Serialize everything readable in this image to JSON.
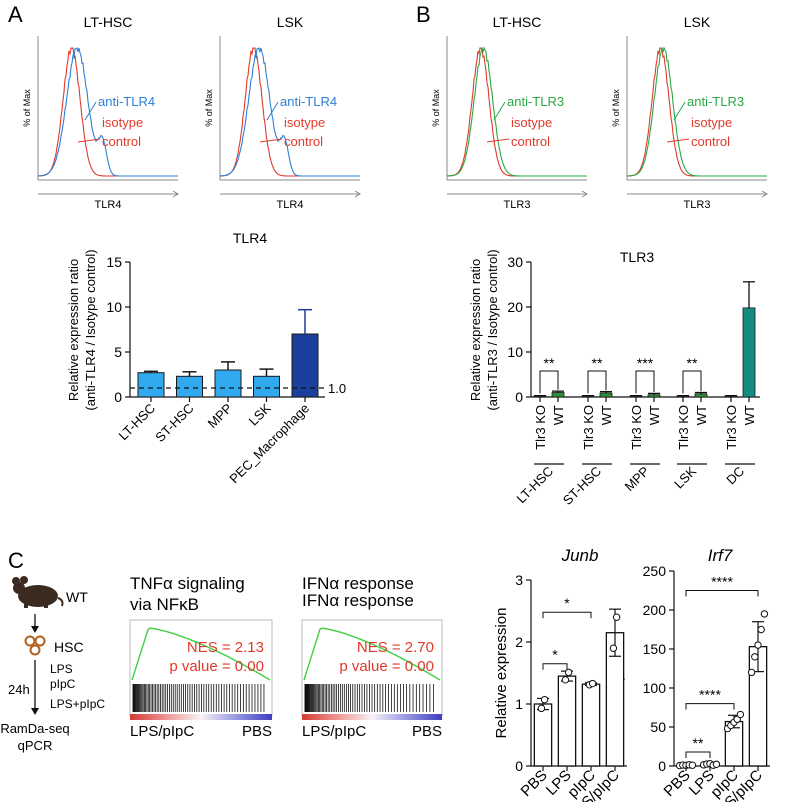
{
  "panel_letters": {
    "a": "A",
    "b": "B",
    "c": "C"
  },
  "histograms": [
    {
      "title": "LT-HSC",
      "ylabel": "% of Max",
      "xlabel": "TLR4",
      "label_primary": "anti-TLR4",
      "label_iso_1": "isotype",
      "label_iso_2": "control",
      "primary_color": "#2e7fd6",
      "iso_color": "#e03a2a"
    },
    {
      "title": "LSK",
      "ylabel": "% of Max",
      "xlabel": "TLR4",
      "label_primary": "anti-TLR4",
      "label_iso_1": "isotype",
      "label_iso_2": "control",
      "primary_color": "#2e7fd6",
      "iso_color": "#e03a2a"
    },
    {
      "title": "LT-HSC",
      "ylabel": "% of Max",
      "xlabel": "TLR3",
      "label_primary": "anti-TLR3",
      "label_iso_1": "isotype",
      "label_iso_2": "control",
      "primary_color": "#2aa845",
      "iso_color": "#e03a2a"
    },
    {
      "title": "LSK",
      "ylabel": "% of Max",
      "xlabel": "TLR3",
      "label_primary": "anti-TLR3",
      "label_iso_1": "isotype",
      "label_iso_2": "control",
      "primary_color": "#2aa845",
      "iso_color": "#e03a2a"
    }
  ],
  "chart_data": [
    {
      "id": "tlr4-bar",
      "type": "bar",
      "title": "TLR4",
      "ylabel_1": "Relative expression ratio",
      "ylabel_2": "(anti-TLR4 / Isotype control)",
      "categories": [
        "LT-HSC",
        "ST-HSC",
        "MPP",
        "LSK",
        "PEC_Macrophage"
      ],
      "values": [
        2.7,
        2.3,
        3.0,
        2.3,
        7.0
      ],
      "errors": [
        0.15,
        0.5,
        0.9,
        0.8,
        2.7
      ],
      "colors": [
        "#31a9ee",
        "#31a9ee",
        "#31a9ee",
        "#31a9ee",
        "#1b3f9c"
      ],
      "ylim": [
        0,
        15
      ],
      "yticks": [
        0,
        5,
        10,
        15
      ],
      "reference_line": {
        "value": 1.0,
        "label": "1.0"
      }
    },
    {
      "id": "tlr3-bar",
      "type": "bar",
      "title": "TLR3",
      "ylabel_1": "Relative expression ratio",
      "ylabel_2": "(anti-TLR3 / Isotype control)",
      "ylim": [
        0,
        30
      ],
      "yticks": [
        0,
        10,
        20,
        30
      ],
      "bar_labels": [
        "Tlr3 KO",
        "WT",
        "Tlr3 KO",
        "WT",
        "Tlr3 KO",
        "WT",
        "Tlr3 KO",
        "WT",
        "Tlr3 KO",
        "WT"
      ],
      "values": [
        0.2,
        1.0,
        0.2,
        0.9,
        0.2,
        0.5,
        0.2,
        0.7,
        0.2,
        19.8
      ],
      "errors": [
        0.1,
        0.3,
        0.1,
        0.3,
        0.1,
        0.3,
        0.1,
        0.3,
        0.1,
        5.8
      ],
      "colors": [
        "#2a8f38",
        "#2a8f38",
        "#2a8f38",
        "#2a8f38",
        "#2a8f38",
        "#2a8f38",
        "#2a8f38",
        "#2a8f38",
        "#2a8f38",
        "#168c80"
      ],
      "groups": [
        "LT-HSC",
        "ST-HSC",
        "MPP",
        "LSK",
        "DC"
      ],
      "significance": [
        "**",
        "**",
        "***",
        "**"
      ]
    },
    {
      "id": "junb-bar",
      "type": "bar",
      "title": "Junb",
      "ylabel": "Relative expression",
      "categories": [
        "PBS",
        "LPS",
        "pIpC",
        "LPS/pIpC"
      ],
      "values": [
        1.0,
        1.45,
        1.32,
        2.15
      ],
      "errors": [
        0.09,
        0.08,
        0.02,
        0.38
      ],
      "points": [
        [
          0.93,
          1.07
        ],
        [
          1.39,
          1.51
        ],
        [
          1.31,
          1.33
        ],
        [
          1.9,
          2.4
        ]
      ],
      "ylim": [
        0,
        3
      ],
      "yticks": [
        0,
        1,
        2,
        3
      ],
      "significance": [
        {
          "from": 0,
          "to": 1,
          "label": "*"
        },
        {
          "from": 0,
          "to": 2,
          "label": "*"
        }
      ]
    },
    {
      "id": "irf7-bar",
      "type": "bar",
      "title": "Irf7",
      "categories": [
        "PBS",
        "LPS",
        "pIpC",
        "LPS/pIpC"
      ],
      "values": [
        1,
        2,
        57,
        153
      ],
      "errors": [
        1,
        2,
        8,
        32
      ],
      "points": [
        [
          0.5,
          1.2,
          0.8,
          1.5,
          1.0
        ],
        [
          1.5,
          2.5,
          3.0,
          1.0,
          2.2
        ],
        [
          48,
          52,
          56,
          60,
          66
        ],
        [
          120,
          140,
          155,
          175,
          195
        ]
      ],
      "ylim": [
        0,
        250
      ],
      "yticks": [
        0,
        50,
        100,
        150,
        200,
        250
      ],
      "significance": [
        {
          "from": 0,
          "to": 1,
          "label": "**"
        },
        {
          "from": 0,
          "to": 2,
          "label": "****"
        },
        {
          "from": 0,
          "to": 3,
          "label": "****"
        }
      ]
    }
  ],
  "schematic": {
    "mouse_label": "WT",
    "cell_label": "HSC",
    "time_label": "24h",
    "treatments": [
      "LPS",
      "pIpC",
      "LPS+pIpC"
    ],
    "readouts": [
      "RamDa-seq",
      "qPCR"
    ]
  },
  "gsea": [
    {
      "title_1": "TNFα signaling",
      "title_2": "via NFκB",
      "nes": "NES = 2.13",
      "pvalue": "p value = 0.00",
      "left_label": "LPS/pIpC",
      "right_label": "PBS"
    },
    {
      "title_1": "IFNα response",
      "title_2": "",
      "nes": "NES = 2.70",
      "pvalue": "p value = 0.00",
      "left_label": "LPS/pIpC",
      "right_label": "PBS"
    }
  ],
  "stray_mark": "."
}
